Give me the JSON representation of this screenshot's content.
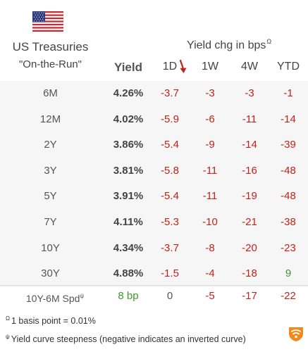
{
  "header": {
    "title_line1": "US Treasuries",
    "title_line2": "\"On-the-Run\"",
    "yield_chg_title": "Yield chg in bps",
    "yield_chg_sup": "Ω",
    "columns": {
      "yield": "Yield",
      "d1": "1D",
      "w1": "1W",
      "w4": "4W",
      "ytd": "YTD"
    },
    "flag_icon": "us-flag-icon",
    "sort_icon": "sort-down-arrow-icon"
  },
  "rows": [
    {
      "label": "6M",
      "yield": "4.26%",
      "d1": "-3.7",
      "w1": "-3",
      "w4": "-3",
      "ytd": "-1"
    },
    {
      "label": "12M",
      "yield": "4.02%",
      "d1": "-5.9",
      "w1": "-6",
      "w4": "-11",
      "ytd": "-14"
    },
    {
      "label": "2Y",
      "yield": "3.86%",
      "d1": "-5.4",
      "w1": "-9",
      "w4": "-14",
      "ytd": "-39"
    },
    {
      "label": "3Y",
      "yield": "3.81%",
      "d1": "-5.8",
      "w1": "-11",
      "w4": "-16",
      "ytd": "-48"
    },
    {
      "label": "5Y",
      "yield": "3.91%",
      "d1": "-5.4",
      "w1": "-11",
      "w4": "-19",
      "ytd": "-48"
    },
    {
      "label": "7Y",
      "yield": "4.11%",
      "d1": "-5.3",
      "w1": "-10",
      "w4": "-21",
      "ytd": "-38"
    },
    {
      "label": "10Y",
      "yield": "4.34%",
      "d1": "-3.7",
      "w1": "-8",
      "w4": "-20",
      "ytd": "-23"
    },
    {
      "label": "30Y",
      "yield": "4.88%",
      "d1": "-1.5",
      "w1": "-4",
      "w4": "-18",
      "ytd": "9"
    }
  ],
  "spread": {
    "label": "10Y-6M Spd",
    "label_sup": "ψ",
    "yield": "8 bp",
    "d1": "0",
    "w1": "-5",
    "w4": "-17",
    "ytd": "-22"
  },
  "footnotes": {
    "fn1_sup": "Ω",
    "fn1_text": "1 basis point = 0.01%",
    "fn2_sup": "ψ",
    "fn2_text": "Yield curve steepness (negative indicates an inverted curve)"
  },
  "colors": {
    "negative": "#c0231a",
    "positive": "#3a9a2a",
    "neutral": "#555555",
    "row_bg": "#f6f6f6"
  },
  "logo_icon": "wifi-shield-logo-icon"
}
